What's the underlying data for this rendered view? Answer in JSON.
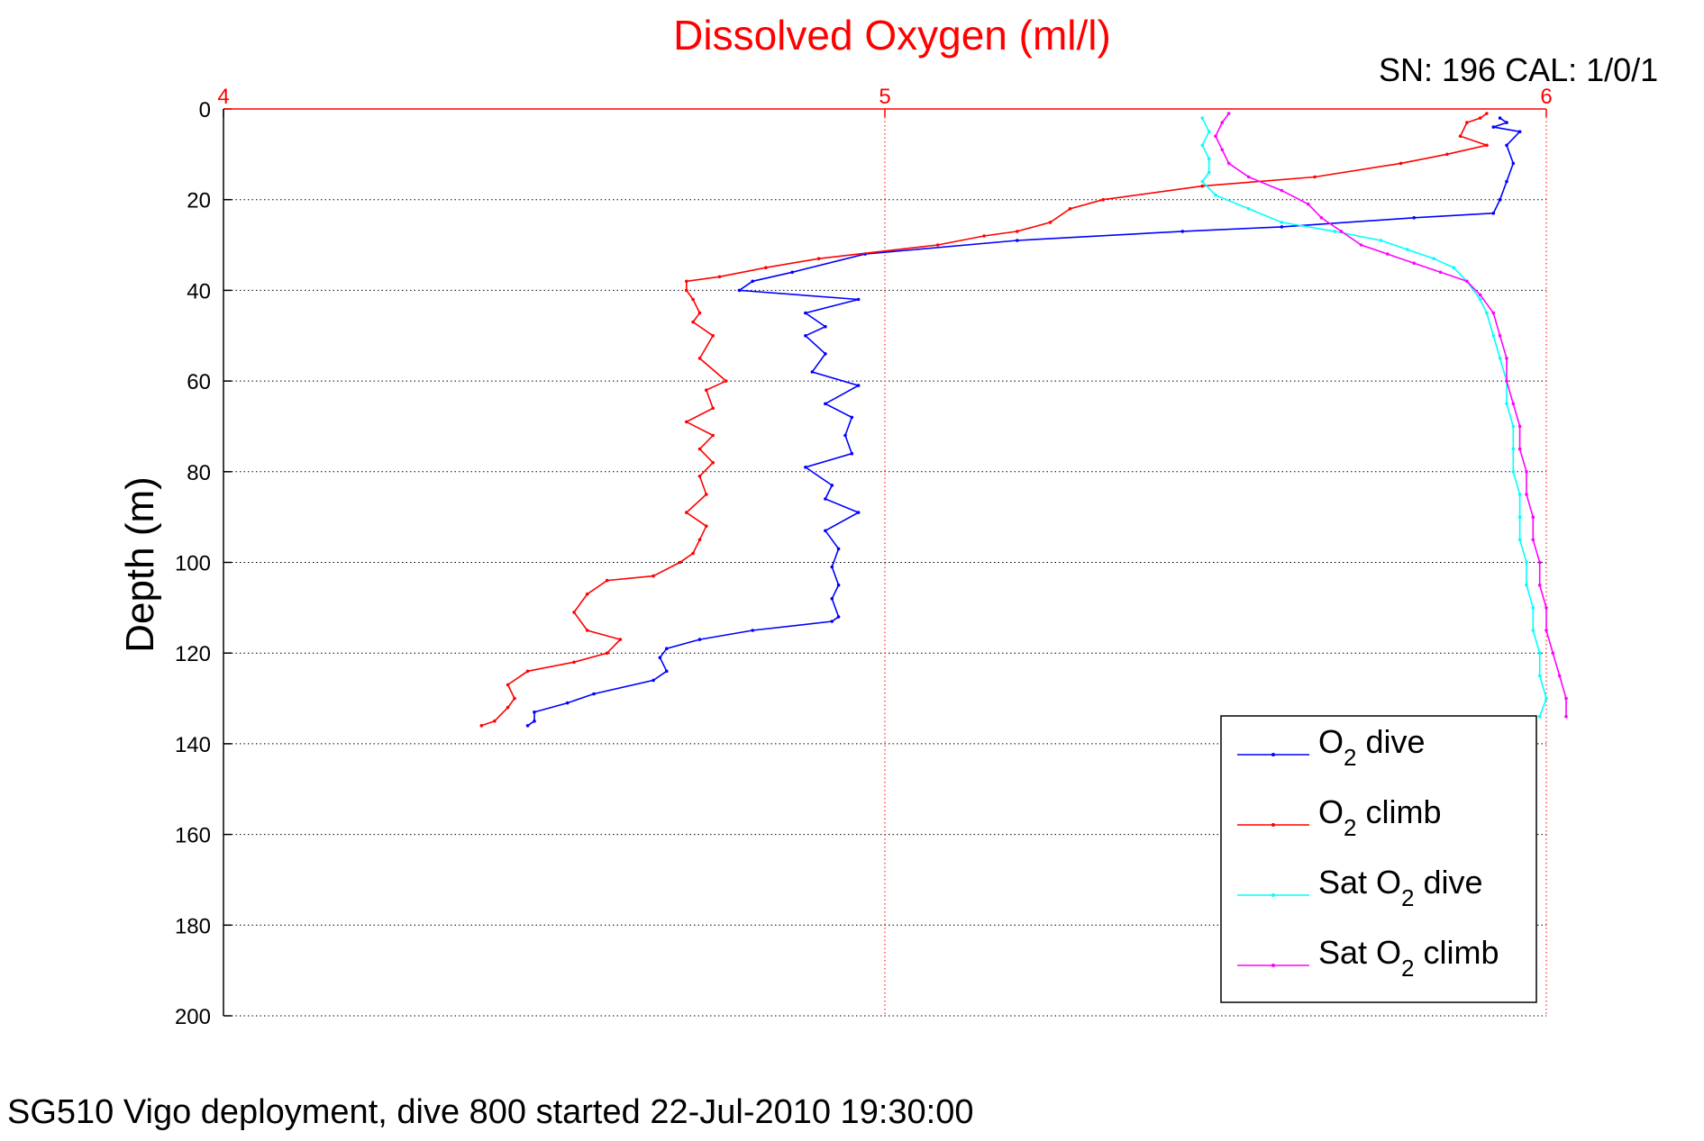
{
  "figure": {
    "title": "Dissolved Oxygen (ml/l)",
    "sn_label": "SN: 196  CAL: 1/0/1",
    "caption": "SG510 Vigo deployment, dive 800 started 22-Jul-2010 19:30:00"
  },
  "chart_data": {
    "type": "line",
    "title": "Dissolved Oxygen (ml/l)",
    "xlabel": "",
    "ylabel": "Depth (m)",
    "xlim": [
      4,
      6
    ],
    "ylim": [
      0,
      200
    ],
    "y_reversed": true,
    "x_axis_position": "top",
    "x_axis_color": "#ff0000",
    "xticks": [
      4,
      5,
      6
    ],
    "yticks": [
      0,
      20,
      40,
      60,
      80,
      100,
      120,
      140,
      160,
      180,
      200
    ],
    "grid": true,
    "legend_position": "bottom-right",
    "series": [
      {
        "name": "O2 dive",
        "legend_main": "O",
        "legend_sub": "2",
        "legend_rest": " dive",
        "color": "#0000ff",
        "points": [
          [
            5.93,
            2
          ],
          [
            5.94,
            3
          ],
          [
            5.92,
            4
          ],
          [
            5.96,
            5
          ],
          [
            5.94,
            8
          ],
          [
            5.95,
            12
          ],
          [
            5.94,
            16
          ],
          [
            5.93,
            20
          ],
          [
            5.92,
            23
          ],
          [
            5.8,
            24
          ],
          [
            5.6,
            26
          ],
          [
            5.45,
            27
          ],
          [
            5.2,
            29
          ],
          [
            4.97,
            32
          ],
          [
            4.86,
            36
          ],
          [
            4.8,
            38
          ],
          [
            4.78,
            40
          ],
          [
            4.96,
            42
          ],
          [
            4.88,
            45
          ],
          [
            4.91,
            48
          ],
          [
            4.88,
            50
          ],
          [
            4.91,
            54
          ],
          [
            4.89,
            58
          ],
          [
            4.96,
            61
          ],
          [
            4.91,
            65
          ],
          [
            4.95,
            68
          ],
          [
            4.94,
            72
          ],
          [
            4.95,
            76
          ],
          [
            4.88,
            79
          ],
          [
            4.92,
            83
          ],
          [
            4.91,
            86
          ],
          [
            4.96,
            89
          ],
          [
            4.91,
            93
          ],
          [
            4.93,
            97
          ],
          [
            4.92,
            101
          ],
          [
            4.93,
            105
          ],
          [
            4.92,
            108
          ],
          [
            4.93,
            112
          ],
          [
            4.92,
            113
          ],
          [
            4.8,
            115
          ],
          [
            4.72,
            117
          ],
          [
            4.67,
            119
          ],
          [
            4.66,
            121
          ],
          [
            4.67,
            124
          ],
          [
            4.65,
            126
          ],
          [
            4.56,
            129
          ],
          [
            4.52,
            131
          ],
          [
            4.47,
            133
          ],
          [
            4.47,
            135
          ],
          [
            4.46,
            136
          ]
        ]
      },
      {
        "name": "O2 climb",
        "legend_main": "O",
        "legend_sub": "2",
        "legend_rest": " climb",
        "color": "#ff0000",
        "points": [
          [
            5.91,
            1
          ],
          [
            5.9,
            2
          ],
          [
            5.88,
            3
          ],
          [
            5.87,
            6
          ],
          [
            5.91,
            8
          ],
          [
            5.85,
            10
          ],
          [
            5.78,
            12
          ],
          [
            5.65,
            15
          ],
          [
            5.48,
            17
          ],
          [
            5.33,
            20
          ],
          [
            5.28,
            22
          ],
          [
            5.25,
            25
          ],
          [
            5.2,
            27
          ],
          [
            5.15,
            28
          ],
          [
            5.08,
            30
          ],
          [
            4.9,
            33
          ],
          [
            4.82,
            35
          ],
          [
            4.75,
            37
          ],
          [
            4.7,
            38
          ],
          [
            4.7,
            40
          ],
          [
            4.71,
            42
          ],
          [
            4.72,
            45
          ],
          [
            4.71,
            47
          ],
          [
            4.74,
            50
          ],
          [
            4.72,
            55
          ],
          [
            4.76,
            60
          ],
          [
            4.73,
            62
          ],
          [
            4.74,
            66
          ],
          [
            4.7,
            69
          ],
          [
            4.74,
            72
          ],
          [
            4.72,
            75
          ],
          [
            4.74,
            78
          ],
          [
            4.72,
            81
          ],
          [
            4.73,
            85
          ],
          [
            4.7,
            89
          ],
          [
            4.73,
            92
          ],
          [
            4.72,
            95
          ],
          [
            4.71,
            98
          ],
          [
            4.69,
            100
          ],
          [
            4.65,
            103
          ],
          [
            4.58,
            104
          ],
          [
            4.55,
            107
          ],
          [
            4.53,
            111
          ],
          [
            4.55,
            115
          ],
          [
            4.6,
            117
          ],
          [
            4.58,
            120
          ],
          [
            4.53,
            122
          ],
          [
            4.46,
            124
          ],
          [
            4.43,
            127
          ],
          [
            4.44,
            130
          ],
          [
            4.43,
            132
          ],
          [
            4.41,
            135
          ],
          [
            4.39,
            136
          ]
        ]
      },
      {
        "name": "Sat O2 dive",
        "legend_main": "Sat O",
        "legend_sub": "2",
        "legend_rest": " dive",
        "color": "#00ffff",
        "points": [
          [
            5.48,
            2
          ],
          [
            5.49,
            5
          ],
          [
            5.48,
            8
          ],
          [
            5.49,
            11
          ],
          [
            5.49,
            14
          ],
          [
            5.48,
            16
          ],
          [
            5.5,
            19
          ],
          [
            5.55,
            22
          ],
          [
            5.6,
            25
          ],
          [
            5.68,
            27
          ],
          [
            5.75,
            29
          ],
          [
            5.79,
            31
          ],
          [
            5.83,
            33
          ],
          [
            5.86,
            35
          ],
          [
            5.88,
            38
          ],
          [
            5.9,
            42
          ],
          [
            5.91,
            45
          ],
          [
            5.92,
            50
          ],
          [
            5.93,
            55
          ],
          [
            5.94,
            60
          ],
          [
            5.94,
            65
          ],
          [
            5.95,
            70
          ],
          [
            5.95,
            75
          ],
          [
            5.95,
            80
          ],
          [
            5.96,
            85
          ],
          [
            5.96,
            90
          ],
          [
            5.96,
            95
          ],
          [
            5.97,
            100
          ],
          [
            5.97,
            105
          ],
          [
            5.98,
            110
          ],
          [
            5.98,
            115
          ],
          [
            5.99,
            120
          ],
          [
            5.99,
            125
          ],
          [
            6.0,
            130
          ],
          [
            5.99,
            134
          ]
        ]
      },
      {
        "name": "Sat O2 climb",
        "legend_main": "Sat O",
        "legend_sub": "2",
        "legend_rest": " climb",
        "color": "#ff00ff",
        "points": [
          [
            5.52,
            1
          ],
          [
            5.51,
            3
          ],
          [
            5.5,
            6
          ],
          [
            5.51,
            9
          ],
          [
            5.52,
            12
          ],
          [
            5.55,
            15
          ],
          [
            5.6,
            18
          ],
          [
            5.64,
            21
          ],
          [
            5.66,
            24
          ],
          [
            5.69,
            27
          ],
          [
            5.72,
            30
          ],
          [
            5.76,
            32
          ],
          [
            5.8,
            34
          ],
          [
            5.84,
            36
          ],
          [
            5.88,
            38
          ],
          [
            5.9,
            41
          ],
          [
            5.92,
            45
          ],
          [
            5.93,
            50
          ],
          [
            5.94,
            55
          ],
          [
            5.94,
            60
          ],
          [
            5.95,
            65
          ],
          [
            5.96,
            70
          ],
          [
            5.96,
            75
          ],
          [
            5.97,
            80
          ],
          [
            5.97,
            85
          ],
          [
            5.98,
            90
          ],
          [
            5.98,
            95
          ],
          [
            5.99,
            100
          ],
          [
            5.99,
            105
          ],
          [
            6.0,
            110
          ],
          [
            6.0,
            115
          ],
          [
            6.01,
            120
          ],
          [
            6.02,
            125
          ],
          [
            6.03,
            130
          ],
          [
            6.03,
            134
          ]
        ]
      }
    ]
  }
}
